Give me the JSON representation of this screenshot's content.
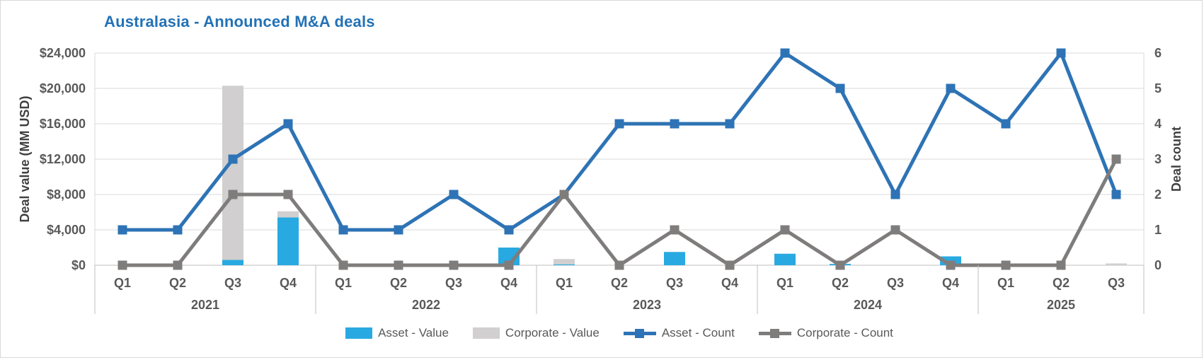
{
  "title": "Australasia - Announced M&A deals",
  "colors": {
    "title": "#2272b6",
    "asset_value": "#29a9e1",
    "corporate_value": "#d1cfcf",
    "asset_count": "#2e73b5",
    "corporate_count": "#7f7c7c",
    "gridline": "#d9d9d9",
    "axis_line": "#bfbfbf",
    "axis_text": "#595959",
    "axis_title_text": "#404040"
  },
  "legend": [
    {
      "label": "Asset - Value",
      "type": "bar",
      "colorKey": "asset_value"
    },
    {
      "label": "Corporate - Value",
      "type": "bar",
      "colorKey": "corporate_value"
    },
    {
      "label": "Asset - Count",
      "type": "line",
      "colorKey": "asset_count"
    },
    {
      "label": "Corporate - Count",
      "type": "line",
      "colorKey": "corporate_count"
    }
  ],
  "chart_data": {
    "type": "combo (stacked bars + lines, dual axis)",
    "title": "Australasia - Announced M&A deals",
    "ylabel_left": "Deal value (MM USD)",
    "ylabel_right": "Deal count",
    "ylim_left": [
      0,
      24000
    ],
    "left_ticks": [
      "$0",
      "$4,000",
      "$8,000",
      "$12,000",
      "$16,000",
      "$20,000",
      "$24,000"
    ],
    "ylim_right": [
      0,
      6
    ],
    "right_ticks": [
      "0",
      "1",
      "2",
      "3",
      "4",
      "5",
      "6"
    ],
    "grid": "horizontal",
    "legend_position": "bottom",
    "years": [
      {
        "label": "2021",
        "quarters": [
          "Q1",
          "Q2",
          "Q3",
          "Q4"
        ]
      },
      {
        "label": "2022",
        "quarters": [
          "Q1",
          "Q2",
          "Q3",
          "Q4"
        ]
      },
      {
        "label": "2023",
        "quarters": [
          "Q1",
          "Q2",
          "Q3",
          "Q4"
        ]
      },
      {
        "label": "2024",
        "quarters": [
          "Q1",
          "Q2",
          "Q3",
          "Q4"
        ]
      },
      {
        "label": "2025",
        "quarters": [
          "Q1",
          "Q2",
          "Q3"
        ]
      }
    ],
    "categories": [
      "Q1 2021",
      "Q2 2021",
      "Q3 2021",
      "Q4 2021",
      "Q1 2022",
      "Q2 2022",
      "Q3 2022",
      "Q4 2022",
      "Q1 2023",
      "Q2 2023",
      "Q3 2023",
      "Q4 2023",
      "Q1 2024",
      "Q2 2024",
      "Q3 2024",
      "Q4 2024",
      "Q1 2025",
      "Q2 2025",
      "Q3 2025"
    ],
    "series": [
      {
        "name": "Asset - Value",
        "type": "bar",
        "stack": "value",
        "axis": "left",
        "values": [
          0,
          0,
          600,
          5400,
          0,
          0,
          0,
          2000,
          100,
          0,
          1500,
          0,
          1300,
          150,
          0,
          1000,
          0,
          0,
          0
        ]
      },
      {
        "name": "Corporate - Value",
        "type": "bar",
        "stack": "value",
        "axis": "left",
        "values": [
          0,
          0,
          19700,
          700,
          0,
          0,
          0,
          0,
          600,
          0,
          0,
          0,
          0,
          0,
          0,
          0,
          0,
          0,
          200
        ]
      },
      {
        "name": "Asset - Count",
        "type": "line",
        "axis": "right",
        "values": [
          1,
          1,
          3,
          4,
          1,
          1,
          2,
          1,
          2,
          4,
          4,
          4,
          6,
          5,
          2,
          5,
          4,
          6,
          2
        ]
      },
      {
        "name": "Corporate - Count",
        "type": "line",
        "axis": "right",
        "values": [
          0,
          0,
          2,
          2,
          0,
          0,
          0,
          0,
          2,
          0,
          1,
          0,
          1,
          0,
          1,
          0,
          0,
          0,
          3
        ]
      }
    ]
  }
}
